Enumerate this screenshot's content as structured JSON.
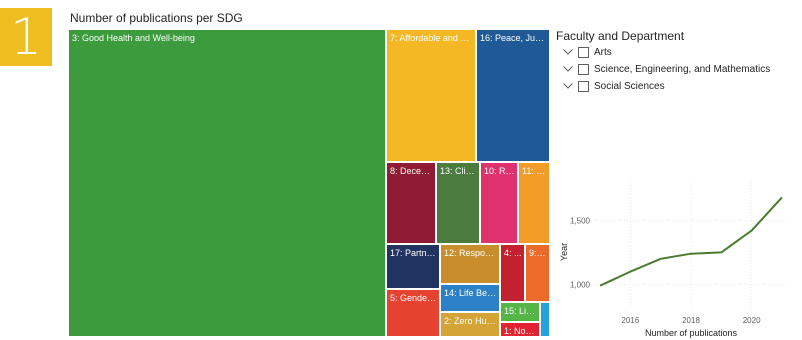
{
  "badge": {
    "number": "1",
    "color": "#eebd1f"
  },
  "treemap": {
    "title": "Number of publications per SDG",
    "tiles": [
      {
        "label": "3: Good Health and Well-being",
        "color": "#3c9b3c"
      },
      {
        "label": "7: Affordable and Cle...",
        "color": "#f4b825"
      },
      {
        "label": "16: Peace, Justic...",
        "color": "#1f5a97"
      },
      {
        "label": "8: Decent ...",
        "color": "#8f1c34"
      },
      {
        "label": "13: Clim...",
        "color": "#4b7c3e"
      },
      {
        "label": "10: Re...",
        "color": "#de316e"
      },
      {
        "label": "11: S...",
        "color": "#f19d28"
      },
      {
        "label": "17: Partner...",
        "color": "#203361"
      },
      {
        "label": "12: Responsi...",
        "color": "#c98e2c"
      },
      {
        "label": "4: ...",
        "color": "#c3212f"
      },
      {
        "label": "9: I...",
        "color": "#ed6a2a"
      },
      {
        "label": "14: Life Belo...",
        "color": "#2c80c5"
      },
      {
        "label": "5: Gender ...",
        "color": "#e54230"
      },
      {
        "label": "15: Life...",
        "color": "#56b547"
      },
      {
        "label": "2: Zero Hung...",
        "color": "#d4a437"
      },
      {
        "label": "1: No P...",
        "color": "#e12332"
      },
      {
        "label": "",
        "color": "#27a0de"
      }
    ]
  },
  "slicer": {
    "title": "Faculty and Department",
    "items": [
      {
        "label": "Arts"
      },
      {
        "label": "Science, Engineering, and Mathematics"
      },
      {
        "label": "Social Sciences"
      }
    ]
  },
  "chart_data": {
    "type": "line",
    "title": "",
    "xlabel": "Number of publications",
    "ylabel": "Year",
    "x": [
      2015,
      2016,
      2017,
      2018,
      2019,
      2020,
      2021
    ],
    "series": [
      {
        "values": [
          990,
          1100,
          1200,
          1240,
          1250,
          1420,
          1680
        ]
      }
    ],
    "xticks": [
      "2016",
      "2018",
      "2020"
    ],
    "yticks": [
      "1,000",
      "1,500"
    ],
    "xlim": [
      2014.8,
      2021.2
    ],
    "ylim": [
      800,
      1800
    ],
    "line_color": "#4a7c2f",
    "grid": true
  }
}
